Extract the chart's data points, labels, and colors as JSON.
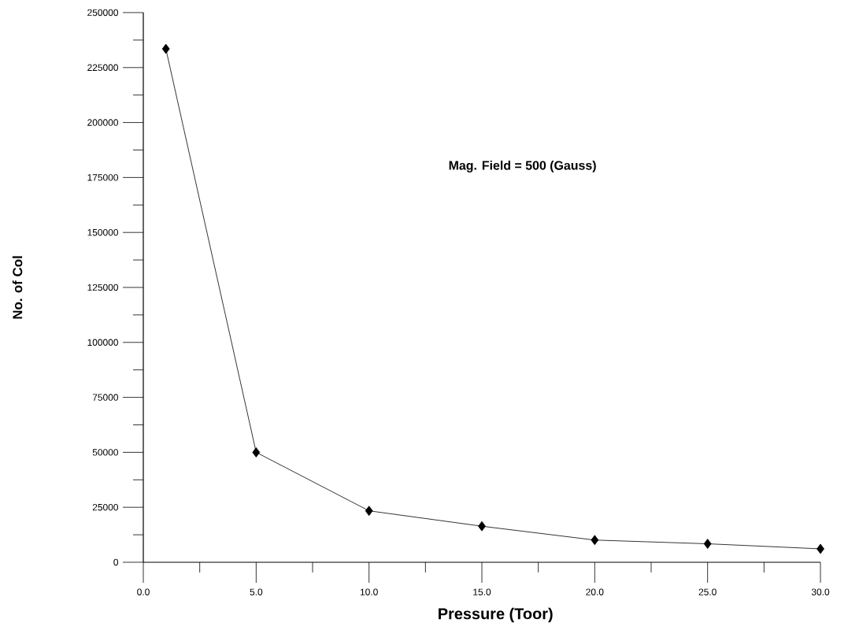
{
  "chart_data": {
    "type": "line",
    "xlabel": "Pressure (Toor)",
    "ylabel": "No. of Col",
    "annotations": [
      "Mag. Field = 500 (Gauss)"
    ],
    "x": [
      1,
      5,
      10,
      15,
      20,
      25,
      30
    ],
    "series": [
      {
        "color": "#000000",
        "values": [
          233500,
          50000,
          23400,
          16400,
          10100,
          8400,
          6100
        ]
      }
    ],
    "xlim": [
      0,
      30
    ],
    "ylim": [
      0,
      250000
    ],
    "xticks": [
      {
        "value": 0,
        "label": "0.0"
      },
      {
        "value": 5,
        "label": "5.0"
      },
      {
        "value": 10,
        "label": "10.0"
      },
      {
        "value": 15,
        "label": "15.0"
      },
      {
        "value": 20,
        "label": "20.0"
      },
      {
        "value": 25,
        "label": "25.0"
      },
      {
        "value": 30,
        "label": "30.0"
      }
    ],
    "yticks": [
      0,
      25000,
      50000,
      75000,
      100000,
      125000,
      150000,
      175000,
      200000,
      225000,
      250000
    ],
    "marker": "diamond",
    "line_style": "solid",
    "grid": false
  }
}
